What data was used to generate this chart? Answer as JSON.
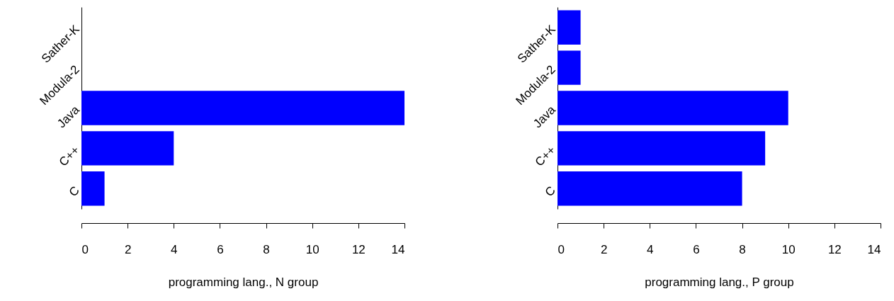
{
  "chart_data": [
    {
      "type": "bar",
      "orientation": "horizontal",
      "categories": [
        "Sather-K",
        "Modula-2",
        "Java",
        "C++",
        "C"
      ],
      "values": [
        0,
        0,
        14,
        4,
        1
      ],
      "color": "#0000ff",
      "xlim": [
        0,
        14
      ],
      "xticks": [
        0,
        2,
        4,
        6,
        8,
        10,
        12,
        14
      ],
      "xlabel": "programming lang., N group"
    },
    {
      "type": "bar",
      "orientation": "horizontal",
      "categories": [
        "Sather-K",
        "Modula-2",
        "Java",
        "C++",
        "C"
      ],
      "values": [
        1,
        1,
        10,
        9,
        8
      ],
      "color": "#0000ff",
      "xlim": [
        0,
        14
      ],
      "xticks": [
        0,
        2,
        4,
        6,
        8,
        10,
        12,
        14
      ],
      "xlabel": "programming lang., P group"
    }
  ]
}
